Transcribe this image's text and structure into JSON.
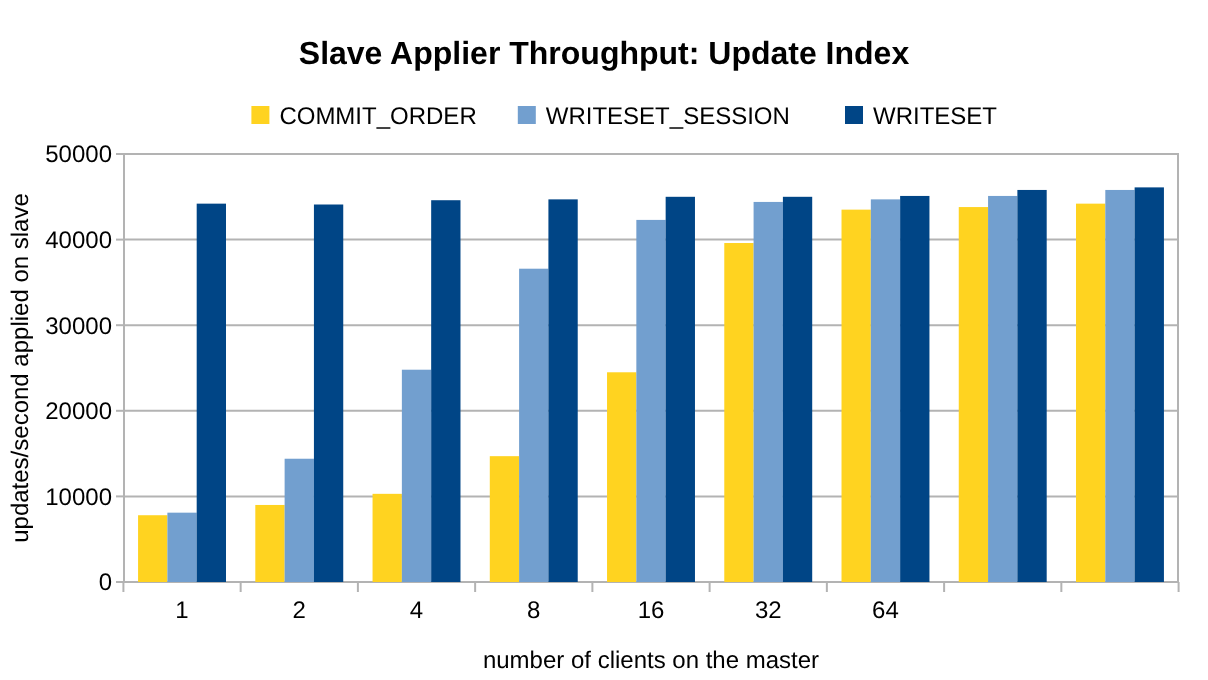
{
  "chart_data": {
    "type": "bar",
    "title": "Slave Applier Throughput: Update Index",
    "xlabel": "number of clients on the master",
    "ylabel": "updates/second applied on slave",
    "categories": [
      "1",
      "2",
      "4",
      "8",
      "16",
      "32",
      "64",
      null,
      null
    ],
    "series": [
      {
        "name": "COMMIT_ORDER",
        "color": "#ffd320",
        "values": [
          7800,
          9000,
          10300,
          14700,
          24500,
          39600,
          43500,
          43800,
          44200
        ]
      },
      {
        "name": "WRITESET_SESSION",
        "color": "#729fcf",
        "values": [
          8100,
          14400,
          24800,
          36600,
          42300,
          44400,
          44700,
          45100,
          45800
        ]
      },
      {
        "name": "WRITESET",
        "color": "#004586",
        "values": [
          44200,
          44100,
          44600,
          44700,
          45000,
          45000,
          45100,
          45800,
          46100
        ]
      }
    ],
    "ylim": [
      0,
      50000
    ],
    "yticks": [
      0,
      10000,
      20000,
      30000,
      40000,
      50000
    ],
    "grid": "y",
    "legend": "top"
  }
}
